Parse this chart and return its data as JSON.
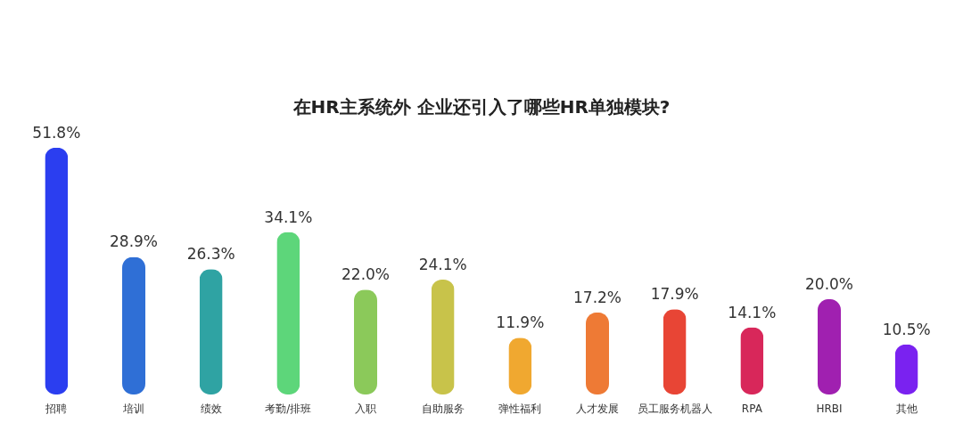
{
  "chart_data": {
    "type": "bar",
    "title": "在HR主系统外 企业还引入了哪些HR单独模块?",
    "categories": [
      "招聘",
      "培训",
      "绩效",
      "考勤/排班",
      "入职",
      "自助服务",
      "弹性福利",
      "人才发展",
      "员工服务机器人",
      "RPA",
      "HRBI",
      "其他"
    ],
    "values": [
      51.8,
      28.9,
      26.3,
      34.1,
      22.0,
      24.1,
      11.9,
      17.2,
      17.9,
      14.1,
      20.0,
      10.5
    ],
    "value_labels": [
      "51.8%",
      "28.9%",
      "26.3%",
      "34.1%",
      "22.0%",
      "24.1%",
      "11.9%",
      "17.2%",
      "17.9%",
      "14.1%",
      "20.0%",
      "10.5%"
    ],
    "colors": [
      "#2b3ef0",
      "#2f6fd6",
      "#2fa3a3",
      "#5dd67a",
      "#8bc95a",
      "#c8c34a",
      "#f0a830",
      "#ee7a35",
      "#e84535",
      "#d8275a",
      "#a020b0",
      "#7a22f0"
    ]
  }
}
